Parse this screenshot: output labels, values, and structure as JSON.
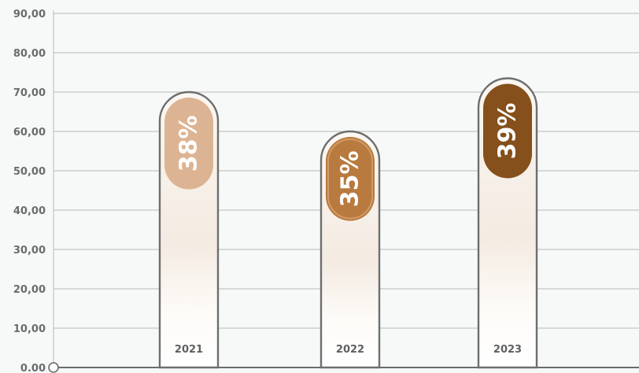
{
  "chart_data": {
    "type": "bar",
    "title": "",
    "xlabel": "",
    "ylabel": "",
    "ylim": [
      0,
      90
    ],
    "ytick_labels": [
      "0.00",
      "10,00",
      "20,00",
      "30,00",
      "40,00",
      "50,00",
      "60,00",
      "70,00",
      "80,00",
      "90,00"
    ],
    "categories": [
      "2021",
      "2022",
      "2023"
    ],
    "values": [
      70,
      60,
      73.5
    ],
    "pill_labels": [
      "38%",
      "35%",
      "39%"
    ],
    "pill_values": [
      38,
      35,
      39
    ],
    "grid": true,
    "legend": "none"
  },
  "colors": {
    "background": "#f7f9f9",
    "grid": "#c4c4c4",
    "axis": "#6b6b6b",
    "bar_outline": "#6e6e6e",
    "pill_2021": "#ddb493",
    "pill_2022": "#b87a3f",
    "pill_2023": "#85501b",
    "bar_fill_top": "#f4ebe2",
    "bar_fill_bottom": "#ffffff"
  }
}
